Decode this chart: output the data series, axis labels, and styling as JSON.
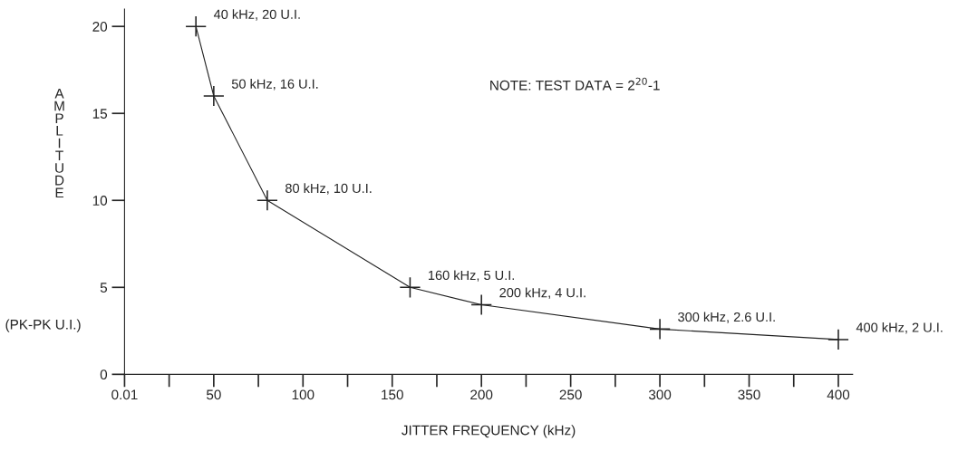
{
  "chart_data": {
    "type": "line",
    "xlabel": "JITTER FREQUENCY (kHz)",
    "ylabel": "AMPLITUDE",
    "x": [
      40,
      50,
      80,
      160,
      200,
      300,
      400
    ],
    "series": [
      {
        "color": "#222222",
        "values": [
          20,
          16,
          10,
          5,
          4,
          2.6,
          2
        ]
      }
    ],
    "marker": "cross",
    "line_style": "solid",
    "grid": false,
    "legend": false,
    "xlim": [
      0,
      408
    ],
    "ylim": [
      0,
      21
    ],
    "xticks": [
      0.01,
      {
        "value": 25,
        "label": null
      },
      50,
      {
        "value": 75,
        "label": null
      },
      100,
      {
        "value": 125,
        "label": null
      },
      150,
      {
        "value": 175,
        "label": null
      },
      200,
      {
        "value": 225,
        "label": null
      },
      250,
      {
        "value": 275,
        "label": null
      },
      300,
      {
        "value": 325,
        "label": null
      },
      350,
      {
        "value": 375,
        "label": null
      },
      400
    ],
    "yticks": [
      0,
      5,
      10,
      15,
      20
    ],
    "annotations": [
      {
        "text": "40 kHz, 20 U.I.",
        "x": 40,
        "y": 20
      },
      {
        "text": "50 kHz, 16 U.I.",
        "x": 50,
        "y": 16
      },
      {
        "text": "80 kHz, 10 U.I.",
        "x": 80,
        "y": 10
      },
      {
        "text": "160 kHz, 5 U.I.",
        "x": 160,
        "y": 5
      },
      {
        "text": "200 kHz, 4 U.I.",
        "x": 200,
        "y": 4
      },
      {
        "text": "300 kHz, 2.6 U.I.",
        "x": 300,
        "y": 2.6
      },
      {
        "text": "400 kHz, 2 U.I.",
        "x": 400,
        "y": 2
      },
      "NOTE: TEST DATA = 2$^{20}$-1",
      "(PK-PK U.I.)"
    ]
  }
}
